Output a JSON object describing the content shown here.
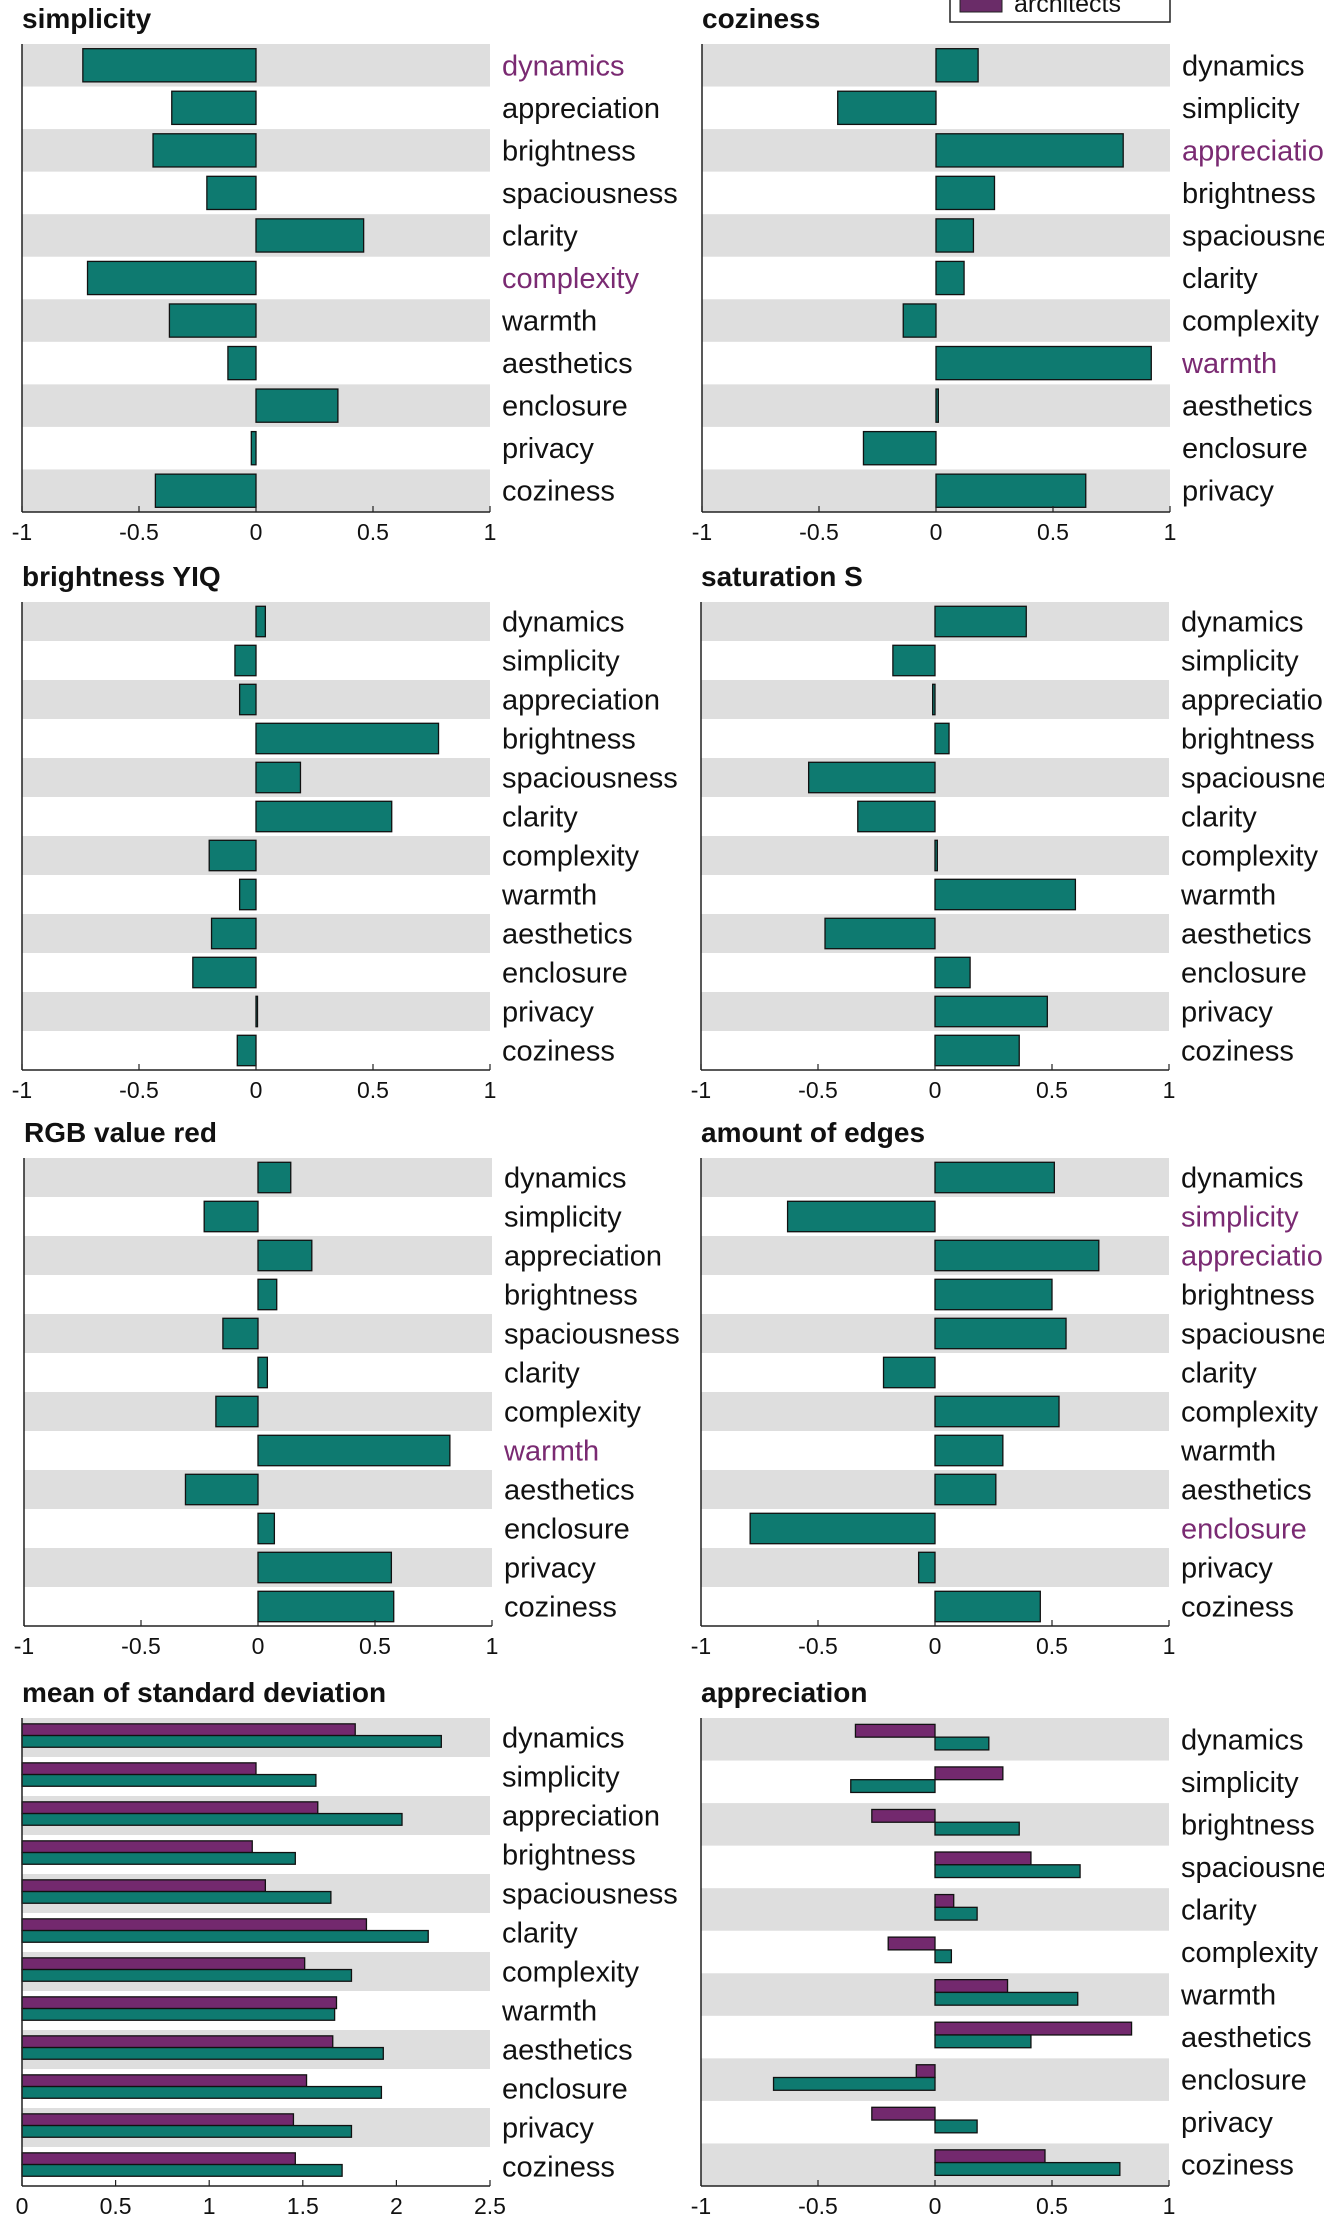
{
  "legend": {
    "label": "architects",
    "color": "#6a2c68"
  },
  "colors": {
    "teal": "#0e7a70",
    "purple": "#73296e",
    "stripe": "#dedede",
    "highlight": "#7a2a72"
  },
  "chart_data": [
    {
      "type": "bar",
      "orientation": "horizontal",
      "title": "simplicity",
      "categories": [
        "dynamics",
        "appreciation",
        "brightness",
        "spaciousness",
        "clarity",
        "complexity",
        "warmth",
        "aesthetics",
        "enclosure",
        "privacy",
        "coziness"
      ],
      "highlighted": [
        "dynamics",
        "complexity"
      ],
      "series": [
        {
          "values": [
            -0.74,
            -0.36,
            -0.44,
            -0.21,
            0.46,
            -0.72,
            -0.37,
            -0.12,
            0.35,
            -0.02,
            -0.43
          ]
        }
      ],
      "xlim": [
        -1,
        1
      ],
      "xticks": [
        "-1",
        "-0.5",
        "0",
        "0.5",
        "1"
      ]
    },
    {
      "type": "bar",
      "orientation": "horizontal",
      "title": "coziness",
      "categories": [
        "dynamics",
        "simplicity",
        "appreciation",
        "brightness",
        "spaciousness",
        "clarity",
        "complexity",
        "warmth",
        "aesthetics",
        "enclosure",
        "privacy"
      ],
      "highlighted": [
        "appreciation",
        "warmth"
      ],
      "series": [
        {
          "values": [
            0.18,
            -0.42,
            0.8,
            0.25,
            0.16,
            0.12,
            -0.14,
            0.92,
            0.01,
            -0.31,
            0.64
          ]
        }
      ],
      "xlim": [
        -1,
        1
      ],
      "xticks": [
        "-1",
        "-0.5",
        "0",
        "0.5",
        "1"
      ]
    },
    {
      "type": "bar",
      "orientation": "horizontal",
      "title": "brightness YIQ",
      "categories": [
        "dynamics",
        "simplicity",
        "appreciation",
        "brightness",
        "spaciousness",
        "clarity",
        "complexity",
        "warmth",
        "aesthetics",
        "enclosure",
        "privacy",
        "coziness"
      ],
      "highlighted": [],
      "series": [
        {
          "values": [
            0.04,
            -0.09,
            -0.07,
            0.78,
            0.19,
            0.58,
            -0.2,
            -0.07,
            -0.19,
            -0.27,
            0.0,
            -0.08
          ]
        }
      ],
      "xlim": [
        -1,
        1
      ],
      "xticks": [
        "-1",
        "-0.5",
        "0",
        "0.5",
        "1"
      ]
    },
    {
      "type": "bar",
      "orientation": "horizontal",
      "title": "saturation S",
      "categories": [
        "dynamics",
        "simplicity",
        "appreciation",
        "brightness",
        "spaciousness",
        "clarity",
        "complexity",
        "warmth",
        "aesthetics",
        "enclosure",
        "privacy",
        "coziness"
      ],
      "highlighted": [],
      "series": [
        {
          "values": [
            0.39,
            -0.18,
            -0.01,
            0.06,
            -0.54,
            -0.33,
            0.01,
            0.6,
            -0.47,
            0.15,
            0.48,
            0.36
          ]
        }
      ],
      "xlim": [
        -1,
        1
      ],
      "xticks": [
        "-1",
        "-0.5",
        "0",
        "0.5",
        "1"
      ]
    },
    {
      "type": "bar",
      "orientation": "horizontal",
      "title": "RGB value red",
      "categories": [
        "dynamics",
        "simplicity",
        "appreciation",
        "brightness",
        "spaciousness",
        "clarity",
        "complexity",
        "warmth",
        "aesthetics",
        "enclosure",
        "privacy",
        "coziness"
      ],
      "highlighted": [
        "warmth"
      ],
      "series": [
        {
          "values": [
            0.14,
            -0.23,
            0.23,
            0.08,
            -0.15,
            0.04,
            -0.18,
            0.82,
            -0.31,
            0.07,
            0.57,
            0.58
          ]
        }
      ],
      "xlim": [
        -1,
        1
      ],
      "xticks": [
        "-1",
        "-0.5",
        "0",
        "0.5",
        "1"
      ]
    },
    {
      "type": "bar",
      "orientation": "horizontal",
      "title": "amount of edges",
      "categories": [
        "dynamics",
        "simplicity",
        "appreciation",
        "brightness",
        "spaciousness",
        "clarity",
        "complexity",
        "warmth",
        "aesthetics",
        "enclosure",
        "privacy",
        "coziness"
      ],
      "highlighted": [
        "simplicity",
        "appreciation",
        "enclosure"
      ],
      "series": [
        {
          "values": [
            0.51,
            -0.63,
            0.7,
            0.5,
            0.56,
            -0.22,
            0.53,
            0.29,
            0.26,
            -0.79,
            -0.07,
            0.45
          ]
        }
      ],
      "xlim": [
        -1,
        1
      ],
      "xticks": [
        "-1",
        "-0.5",
        "0",
        "0.5",
        "1"
      ]
    },
    {
      "type": "bar",
      "orientation": "horizontal",
      "title": "mean of standard deviation",
      "categories": [
        "dynamics",
        "simplicity",
        "appreciation",
        "brightness",
        "spaciousness",
        "clarity",
        "complexity",
        "warmth",
        "aesthetics",
        "enclosure",
        "privacy",
        "coziness"
      ],
      "highlighted": [],
      "series": [
        {
          "name": "architects",
          "color": "purple",
          "values": [
            1.78,
            1.25,
            1.58,
            1.23,
            1.3,
            1.84,
            1.51,
            1.68,
            1.66,
            1.52,
            1.45,
            1.46
          ]
        },
        {
          "color": "teal",
          "values": [
            2.24,
            1.57,
            2.03,
            1.46,
            1.65,
            2.17,
            1.76,
            1.67,
            1.93,
            1.92,
            1.76,
            1.71
          ]
        }
      ],
      "xlim": [
        0,
        2.5
      ],
      "xticks": [
        "0",
        "0.5",
        "1",
        "1.5",
        "2",
        "2.5"
      ]
    },
    {
      "type": "bar",
      "orientation": "horizontal",
      "title": "appreciation",
      "categories": [
        "dynamics",
        "simplicity",
        "brightness",
        "spaciousness",
        "clarity",
        "complexity",
        "warmth",
        "aesthetics",
        "enclosure",
        "privacy",
        "coziness"
      ],
      "highlighted": [],
      "series": [
        {
          "name": "architects",
          "color": "purple",
          "values": [
            -0.34,
            0.29,
            -0.27,
            0.41,
            0.08,
            -0.2,
            0.31,
            0.84,
            -0.08,
            -0.27,
            0.47
          ]
        },
        {
          "color": "teal",
          "values": [
            0.23,
            -0.36,
            0.36,
            0.62,
            0.18,
            0.07,
            0.61,
            0.41,
            -0.69,
            0.18,
            0.79
          ]
        }
      ],
      "xlim": [
        -1,
        1
      ],
      "xticks": [
        "-1",
        "-0.5",
        "0",
        "0.5",
        "1"
      ]
    }
  ]
}
